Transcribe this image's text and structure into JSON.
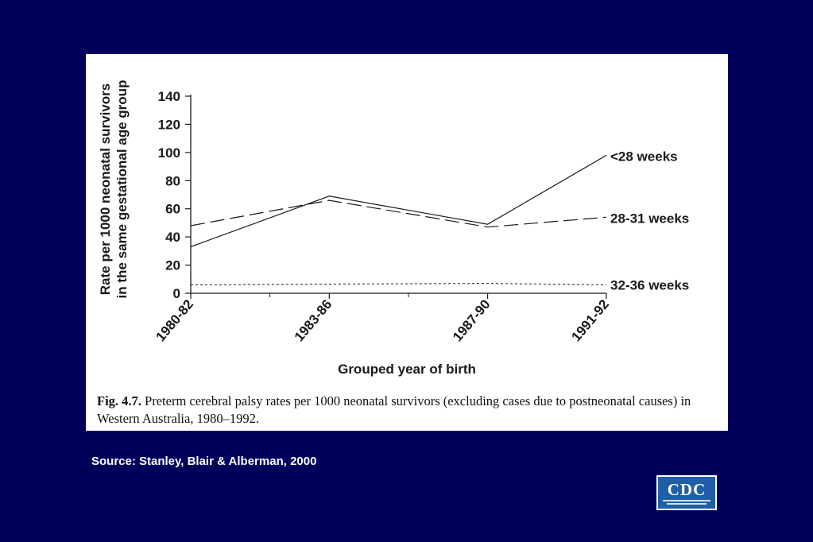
{
  "slide": {
    "source_text": "Source: Stanley, Blair & Alberman, 2000",
    "logo_text": "CDC"
  },
  "colors": {
    "background": "#00005c",
    "panel": "#ffffff",
    "line": "#1a1a1a"
  },
  "chart_data": {
    "type": "line",
    "x": [
      "1980-82",
      "1983-86",
      "1987-90",
      "1991-92"
    ],
    "x_positions": [
      1981,
      1984.5,
      1988.5,
      1991.5
    ],
    "xlim": [
      1981,
      1991.5
    ],
    "ylabel_line1": "Rate per 1000 neonatal survivors",
    "ylabel_line2": "in the same gestational age group",
    "xlabel": "Grouped year of birth",
    "ylim": [
      0,
      140
    ],
    "yticks": [
      0,
      20,
      40,
      60,
      80,
      100,
      120,
      140
    ],
    "grid": false,
    "legend": "direct labels at right end of lines",
    "series": [
      {
        "name": "<28 weeks",
        "style": "solid",
        "values": [
          33,
          69,
          49,
          98
        ]
      },
      {
        "name": "28-31 weeks",
        "style": "dashed",
        "values": [
          48,
          66,
          47,
          54
        ]
      },
      {
        "name": "32-36 weeks",
        "style": "dotted",
        "values": [
          6,
          6.5,
          7,
          6
        ]
      }
    ],
    "caption_label": "Fig. 4.7.",
    "caption_text": " Preterm cerebral palsy rates per 1000 neonatal survivors (excluding cases due to postneonatal causes) in Western Australia, 1980–1992."
  }
}
